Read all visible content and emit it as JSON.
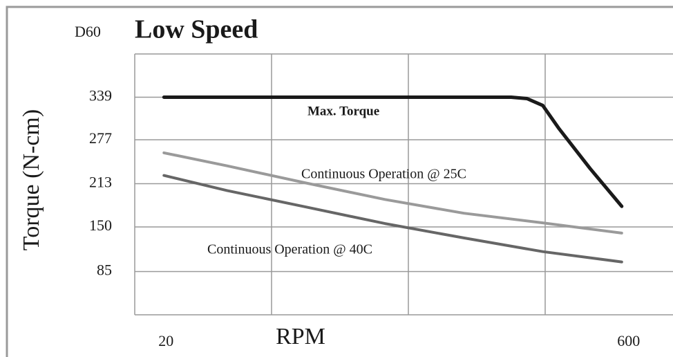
{
  "chart_data": {
    "type": "line",
    "subtitle": "D60",
    "title": "Low Speed",
    "xlabel": "RPM",
    "ylabel": "Torque (N-cm)",
    "xlim": [
      -17,
      665
    ],
    "ylim": [
      22,
      402
    ],
    "xticks": [
      20,
      600
    ],
    "yticks": [
      339,
      277,
      213,
      150,
      85
    ],
    "grid": true,
    "series": [
      {
        "name": "Max. Torque",
        "color": "#1a1a1a",
        "x": [
          20,
          100,
          200,
          300,
          400,
          460,
          480,
          500,
          520,
          560,
          600
        ],
        "values": [
          339,
          339,
          339,
          339,
          339,
          339,
          337,
          327,
          294,
          235,
          180
        ]
      },
      {
        "name": "Continuous Operation @ 25C",
        "color": "#9a9a9a",
        "x": [
          20,
          100,
          200,
          300,
          400,
          500,
          600
        ],
        "values": [
          258,
          239,
          214,
          190,
          170,
          156,
          141
        ]
      },
      {
        "name": "Continuous Operation @ 40C",
        "color": "#666666",
        "x": [
          20,
          100,
          200,
          300,
          400,
          500,
          600
        ],
        "values": [
          225,
          203,
          179,
          155,
          134,
          114,
          99
        ]
      }
    ]
  }
}
